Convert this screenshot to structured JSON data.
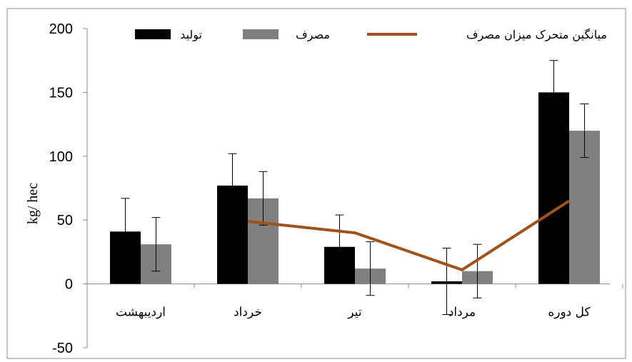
{
  "chart_data": {
    "type": "bar",
    "title": "",
    "xlabel": "",
    "ylabel": "kg/ hec",
    "ylim": [
      -50,
      200
    ],
    "yticks": [
      -50,
      0,
      50,
      100,
      150,
      200
    ],
    "grid": false,
    "legend_position": "top",
    "categories": [
      "اردیبهشت",
      "خرداد",
      "تیر",
      "مرداد",
      "کل دوره"
    ],
    "series": [
      {
        "name": "تولید",
        "kind": "bar",
        "color": "#000000",
        "values": [
          41,
          77,
          29,
          2,
          150
        ],
        "error": [
          26,
          25,
          25,
          26,
          25
        ]
      },
      {
        "name": "مصرف",
        "kind": "bar",
        "color": "#808080",
        "values": [
          31,
          67,
          12,
          10,
          120
        ],
        "error": [
          21,
          21,
          21,
          21,
          21
        ]
      },
      {
        "name": "میانگین متحرک میزان مصرف",
        "kind": "line",
        "color": "#a0521a",
        "values": [
          null,
          49,
          40,
          11,
          65
        ]
      }
    ]
  }
}
